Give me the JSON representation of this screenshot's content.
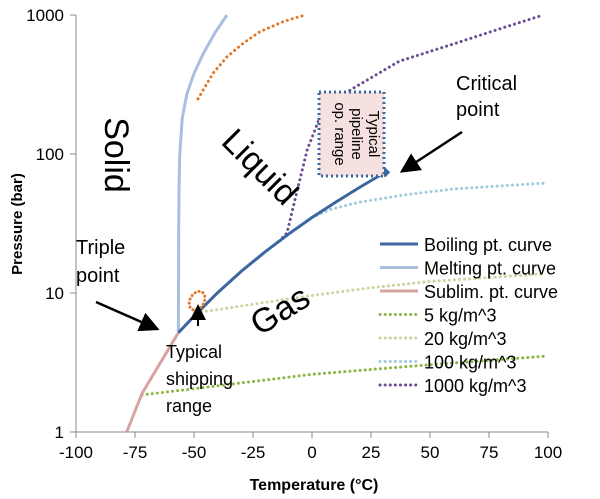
{
  "chart_data": {
    "type": "line",
    "xlabel": "Temperature (°C)",
    "ylabel": "Pressure (bar)",
    "xlim": [
      -100,
      100
    ],
    "ylim": [
      1,
      1000
    ],
    "yscale": "log",
    "xticks": [
      "-100",
      "-75",
      "-50",
      "-25",
      "0",
      "25",
      "50",
      "75",
      "100"
    ],
    "yticks": [
      "1",
      "10",
      "100",
      "1000"
    ],
    "grid": false,
    "legend_placement": "right",
    "series": [
      {
        "name": "Boiling pt. curve",
        "style": "solid",
        "color": "#3b67a0",
        "points": [
          [
            -56.6,
            5.18
          ],
          [
            -50,
            6.8
          ],
          [
            -40,
            10.05
          ],
          [
            -30,
            14.3
          ],
          [
            -20,
            19.7
          ],
          [
            -10,
            26.5
          ],
          [
            0,
            34.9
          ],
          [
            10,
            45
          ],
          [
            20,
            57.3
          ],
          [
            31,
            73.8
          ]
        ]
      },
      {
        "name": "Melting pt. curve",
        "style": "solid",
        "color": "#a9bfde",
        "points": [
          [
            -56.6,
            5.18
          ],
          [
            -56.5,
            30
          ],
          [
            -56.3,
            60
          ],
          [
            -56,
            100
          ],
          [
            -55,
            180
          ],
          [
            -53,
            270
          ],
          [
            -50,
            380
          ],
          [
            -46,
            530
          ],
          [
            -41,
            750
          ],
          [
            -36,
            1000
          ]
        ]
      },
      {
        "name": "Sublim. pt. curve",
        "style": "solid",
        "color": "#d9a3a3",
        "points": [
          [
            -78.5,
            1
          ],
          [
            -72,
            1.9
          ],
          [
            -65,
            3.0
          ],
          [
            -56.6,
            5.18
          ]
        ]
      },
      {
        "name": "5 kg/m^3",
        "style": "dotted",
        "color": "#8db543",
        "points": [
          [
            -72,
            1.85
          ],
          [
            -50,
            2.05
          ],
          [
            0,
            2.6
          ],
          [
            50,
            3.05
          ],
          [
            100,
            3.52
          ]
        ]
      },
      {
        "name": "20 kg/m^3",
        "style": "dotted",
        "color": "#c4d7a0",
        "points": [
          [
            -49,
            7.2
          ],
          [
            -25,
            8.3
          ],
          [
            0,
            9.6
          ],
          [
            25,
            10.9
          ],
          [
            50,
            12.1
          ],
          [
            97,
            13.7
          ]
        ]
      },
      {
        "name": "100 kg/m^3",
        "style": "dotted",
        "color": "#a1cbdc",
        "points": [
          [
            -14,
            23.5
          ],
          [
            0,
            35
          ],
          [
            8,
            40
          ],
          [
            20,
            45
          ],
          [
            40,
            51
          ],
          [
            60,
            56
          ],
          [
            80,
            59
          ],
          [
            100,
            62
          ]
        ]
      },
      {
        "name": "1000 kg/m^3",
        "style": "dotted",
        "color": "#6b4c94",
        "points": [
          [
            -14,
            23.5
          ],
          [
            -10.6,
            27
          ],
          [
            -7.2,
            47
          ],
          [
            -2,
            108
          ],
          [
            4.7,
            210
          ],
          [
            17,
            294
          ],
          [
            37,
            465
          ],
          [
            60,
            620
          ],
          [
            80,
            800
          ],
          [
            98,
            1000
          ]
        ]
      }
    ],
    "extra_series": [
      {
        "style": "dotted",
        "color": "#e0782a",
        "points": [
          [
            -48.3,
            249
          ],
          [
            -42,
            380
          ],
          [
            -36,
            500
          ],
          [
            -29,
            630
          ],
          [
            -22,
            760
          ],
          [
            -12,
            900
          ],
          [
            -3,
            1000
          ]
        ]
      }
    ],
    "critical_point": {
      "label": "Critical\npoint",
      "T": 31,
      "P": 73.8
    },
    "shipping_region": {
      "T": -48.7,
      "P": 8.8,
      "color": "#e0782a"
    },
    "annotations": {
      "solid": "Solid",
      "liquid": "Liquid",
      "gas": "Gas",
      "triple_point_1": "Triple",
      "triple_point_2": "point",
      "critical_1": "Critical",
      "critical_2": "point",
      "shipping_1": "Typical",
      "shipping_2": "shipping",
      "shipping_3": "range",
      "pipeline_1": "Typical",
      "pipeline_2": "pipeline",
      "pipeline_3": "op. range"
    }
  }
}
